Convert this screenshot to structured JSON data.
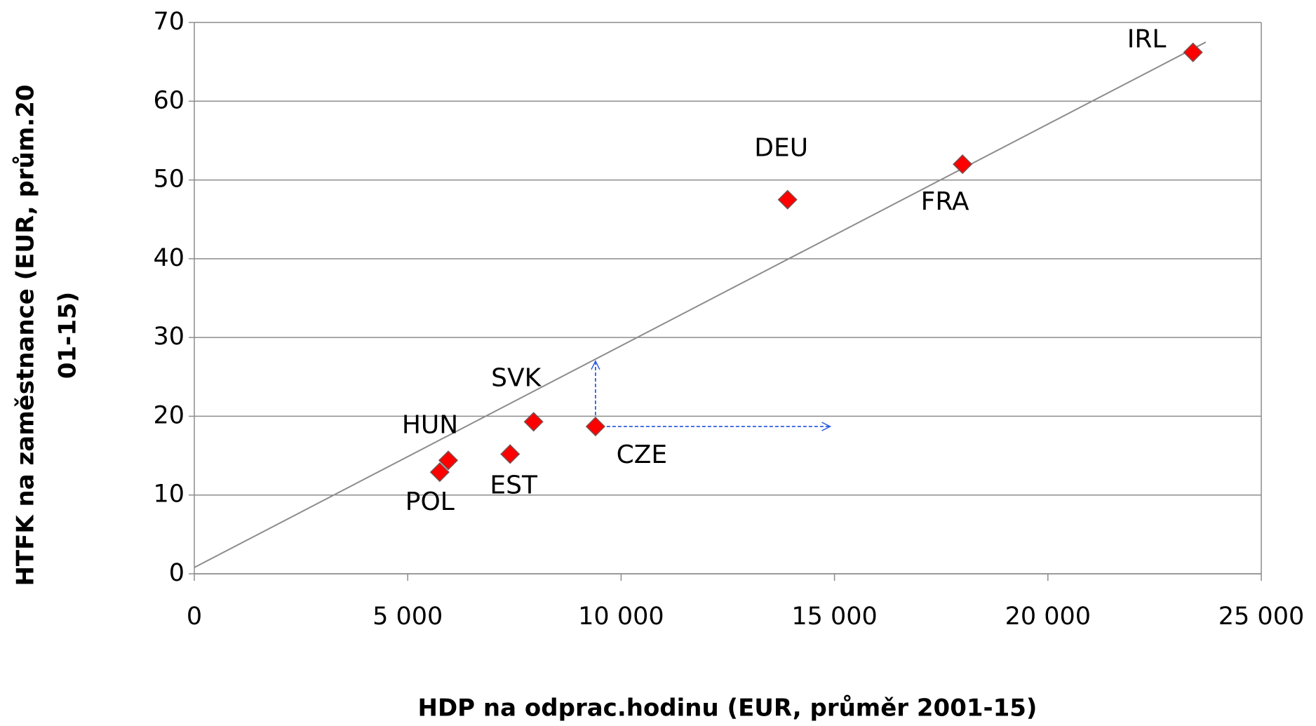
{
  "chart_data": {
    "type": "scatter",
    "x_label": "HDP na odprac.hodinu (EUR, průměr 2001-15)",
    "y_label": [
      "HTFK na zaměstnance (EUR, prům.20",
      "01-15)"
    ],
    "labels": [
      "IRL",
      "FRA",
      "DEU",
      "CZE",
      "SVK",
      "EST",
      "HUN",
      "POL"
    ],
    "x": [
      23400,
      18000,
      13900,
      9400,
      7950,
      7400,
      5950,
      5750
    ],
    "values": [
      66.2,
      52,
      47.5,
      18.7,
      19.3,
      15.2,
      14.4,
      12.9
    ],
    "color": "#ff0000",
    "trendline": {
      "x": [
        0,
        23700
      ],
      "y": [
        0.8,
        67.5
      ],
      "color": "#8c8c8c"
    },
    "arrows": {
      "color": "#2e5fe0",
      "x": [
        9400,
        9400,
        14900
      ],
      "y": [
        27,
        18.7,
        18.7
      ]
    },
    "xlim": [
      0,
      25000
    ],
    "xticks": [
      0,
      {
        "value": 5000,
        "label": "5 000"
      },
      {
        "value": 10000,
        "label": "10 000"
      },
      {
        "value": 15000,
        "label": "15 000"
      },
      {
        "value": 20000,
        "label": "20 000"
      },
      {
        "value": 25000,
        "label": "25 000"
      }
    ],
    "ylim": [
      0,
      70
    ],
    "yticks": [
      0,
      10,
      20,
      30,
      40,
      50,
      60,
      70
    ],
    "grid": true
  }
}
